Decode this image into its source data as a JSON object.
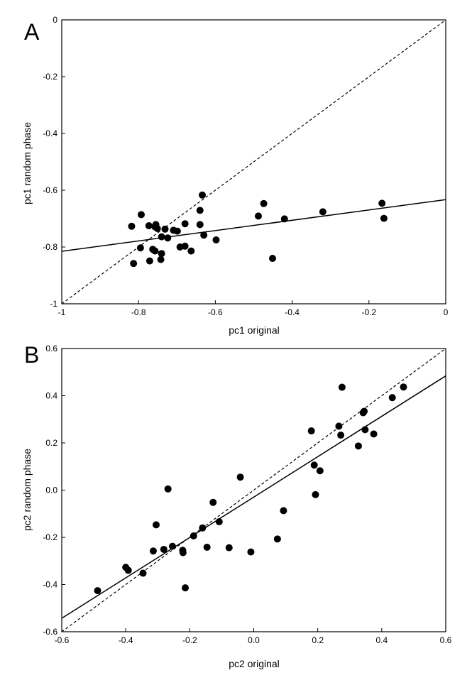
{
  "chart_data": [
    {
      "type": "scatter",
      "panel_label": "A",
      "xlabel": "pc1 original",
      "ylabel": "pc1 random phase",
      "xlim": [
        -1,
        0
      ],
      "ylim": [
        -1,
        0
      ],
      "xticks": [
        -1,
        -0.8,
        -0.6,
        -0.4,
        -0.2,
        0
      ],
      "yticks": [
        -1,
        -0.8,
        -0.6,
        -0.4,
        -0.2,
        0
      ],
      "xtick_labels": [
        "-1",
        "-0.8",
        "-0.6",
        "-0.4",
        "-0.2",
        "0"
      ],
      "ytick_labels": [
        "-1",
        "-0.8",
        "-0.6",
        "-0.4",
        "-0.2",
        "0"
      ],
      "grid": false,
      "points": [
        {
          "x": -0.818,
          "y": -0.727
        },
        {
          "x": -0.813,
          "y": -0.858
        },
        {
          "x": -0.793,
          "y": -0.686
        },
        {
          "x": -0.795,
          "y": -0.803
        },
        {
          "x": -0.773,
          "y": -0.725
        },
        {
          "x": -0.771,
          "y": -0.849
        },
        {
          "x": -0.763,
          "y": -0.808
        },
        {
          "x": -0.757,
          "y": -0.814
        },
        {
          "x": -0.757,
          "y": -0.729
        },
        {
          "x": -0.755,
          "y": -0.721
        },
        {
          "x": -0.751,
          "y": -0.735
        },
        {
          "x": -0.742,
          "y": -0.844
        },
        {
          "x": -0.74,
          "y": -0.823
        },
        {
          "x": -0.74,
          "y": -0.764
        },
        {
          "x": -0.731,
          "y": -0.737
        },
        {
          "x": -0.724,
          "y": -0.768
        },
        {
          "x": -0.709,
          "y": -0.741
        },
        {
          "x": -0.699,
          "y": -0.744
        },
        {
          "x": -0.692,
          "y": -0.8
        },
        {
          "x": -0.679,
          "y": -0.718
        },
        {
          "x": -0.679,
          "y": -0.797
        },
        {
          "x": -0.663,
          "y": -0.814
        },
        {
          "x": -0.64,
          "y": -0.721
        },
        {
          "x": -0.64,
          "y": -0.671
        },
        {
          "x": -0.634,
          "y": -0.617
        },
        {
          "x": -0.63,
          "y": -0.758
        },
        {
          "x": -0.598,
          "y": -0.775
        },
        {
          "x": -0.488,
          "y": -0.691
        },
        {
          "x": -0.474,
          "y": -0.647
        },
        {
          "x": -0.451,
          "y": -0.84
        },
        {
          "x": -0.42,
          "y": -0.701
        },
        {
          "x": -0.32,
          "y": -0.676
        },
        {
          "x": -0.166,
          "y": -0.646
        },
        {
          "x": -0.161,
          "y": -0.699
        }
      ],
      "regression_line": {
        "x": [
          -1,
          0
        ],
        "y": [
          -0.815,
          -0.633
        ],
        "style": "solid"
      },
      "identity_line": {
        "x": [
          -1,
          0
        ],
        "y": [
          -1,
          0
        ],
        "style": "dashed"
      }
    },
    {
      "type": "scatter",
      "panel_label": "B",
      "xlabel": "pc2 original",
      "ylabel": "pc2 random phase",
      "xlim": [
        -0.6,
        0.6
      ],
      "ylim": [
        -0.6,
        0.6
      ],
      "xticks": [
        -0.6,
        -0.4,
        -0.2,
        0,
        0.2,
        0.4,
        0.6
      ],
      "yticks": [
        -0.6,
        -0.4,
        -0.2,
        0,
        0.2,
        0.4,
        0.6
      ],
      "xtick_labels": [
        "-0.6",
        "-0.4",
        "-0.2",
        "0.0",
        "0.2",
        "0.4",
        "0.6"
      ],
      "ytick_labels": [
        "-0.6",
        "-0.4",
        "-0.2",
        "0.0",
        "0.2",
        "0.4",
        "0.6"
      ],
      "grid": false,
      "points": [
        {
          "x": -0.488,
          "y": -0.426
        },
        {
          "x": -0.4,
          "y": -0.327
        },
        {
          "x": -0.392,
          "y": -0.34
        },
        {
          "x": -0.346,
          "y": -0.352
        },
        {
          "x": -0.314,
          "y": -0.258
        },
        {
          "x": -0.305,
          "y": -0.147
        },
        {
          "x": -0.281,
          "y": -0.251
        },
        {
          "x": -0.268,
          "y": 0.005
        },
        {
          "x": -0.254,
          "y": -0.238
        },
        {
          "x": -0.222,
          "y": -0.255
        },
        {
          "x": -0.221,
          "y": -0.265
        },
        {
          "x": -0.214,
          "y": -0.414
        },
        {
          "x": -0.188,
          "y": -0.194
        },
        {
          "x": -0.16,
          "y": -0.16
        },
        {
          "x": -0.146,
          "y": -0.242
        },
        {
          "x": -0.127,
          "y": -0.052
        },
        {
          "x": -0.108,
          "y": -0.134
        },
        {
          "x": -0.077,
          "y": -0.244
        },
        {
          "x": -0.042,
          "y": 0.055
        },
        {
          "x": -0.009,
          "y": -0.262
        },
        {
          "x": 0.074,
          "y": -0.207
        },
        {
          "x": 0.093,
          "y": -0.087
        },
        {
          "x": 0.18,
          "y": 0.251
        },
        {
          "x": 0.189,
          "y": 0.106
        },
        {
          "x": 0.193,
          "y": -0.019
        },
        {
          "x": 0.207,
          "y": 0.082
        },
        {
          "x": 0.266,
          "y": 0.271
        },
        {
          "x": 0.272,
          "y": 0.233
        },
        {
          "x": 0.276,
          "y": 0.436
        },
        {
          "x": 0.327,
          "y": 0.187
        },
        {
          "x": 0.342,
          "y": 0.328
        },
        {
          "x": 0.345,
          "y": 0.334
        },
        {
          "x": 0.348,
          "y": 0.256
        },
        {
          "x": 0.375,
          "y": 0.238
        },
        {
          "x": 0.433,
          "y": 0.392
        },
        {
          "x": 0.468,
          "y": 0.437
        }
      ],
      "regression_line": {
        "x": [
          -0.6,
          0.6
        ],
        "y": [
          -0.543,
          0.484
        ],
        "style": "solid"
      },
      "identity_line": {
        "x": [
          -0.6,
          0.6
        ],
        "y": [
          -0.6,
          0.6
        ],
        "style": "dashed"
      }
    }
  ]
}
